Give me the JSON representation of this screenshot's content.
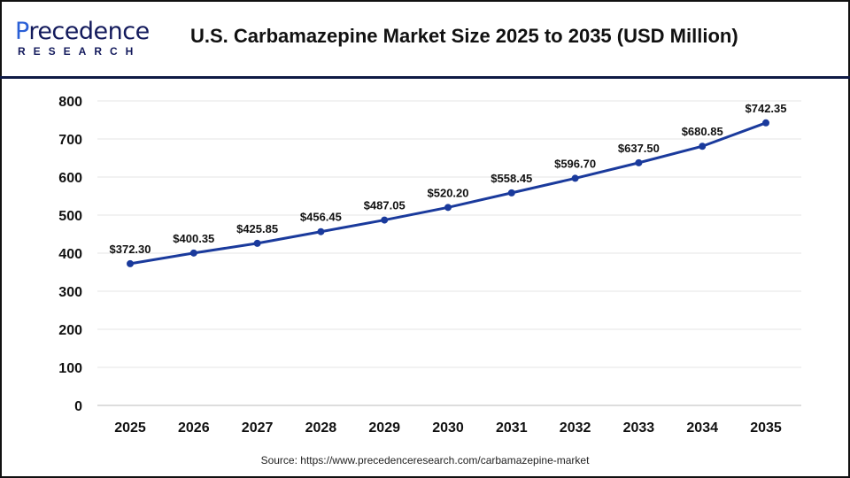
{
  "logo": {
    "text": "Precedence",
    "sub": "RESEARCH"
  },
  "header": {
    "title": "U.S. Carbamazepine Market Size 2025 to 2035 (USD Million)"
  },
  "source": "Source: https://www.precedenceresearch.com/carbamazepine-market",
  "chart_data": {
    "type": "line",
    "title": "U.S. Carbamazepine Market Size 2025 to 2035 (USD Million)",
    "categories": [
      "2025",
      "2026",
      "2027",
      "2028",
      "2029",
      "2030",
      "2031",
      "2032",
      "2033",
      "2034",
      "2035"
    ],
    "values": [
      372.3,
      400.35,
      425.85,
      456.45,
      487.05,
      520.2,
      558.45,
      596.7,
      637.5,
      680.85,
      742.35
    ],
    "data_labels": [
      "$372.30",
      "$400.35",
      "$425.85",
      "$456.45",
      "$487.05",
      "$520.20",
      "$558.45",
      "$596.70",
      "$637.50",
      "$680.85",
      "$742.35"
    ],
    "ylim": [
      0,
      800
    ],
    "yticks": [
      "0",
      "100",
      "200",
      "300",
      "400",
      "500",
      "600",
      "700",
      "800"
    ],
    "grid": true,
    "line_color": "#1a3a9c"
  }
}
